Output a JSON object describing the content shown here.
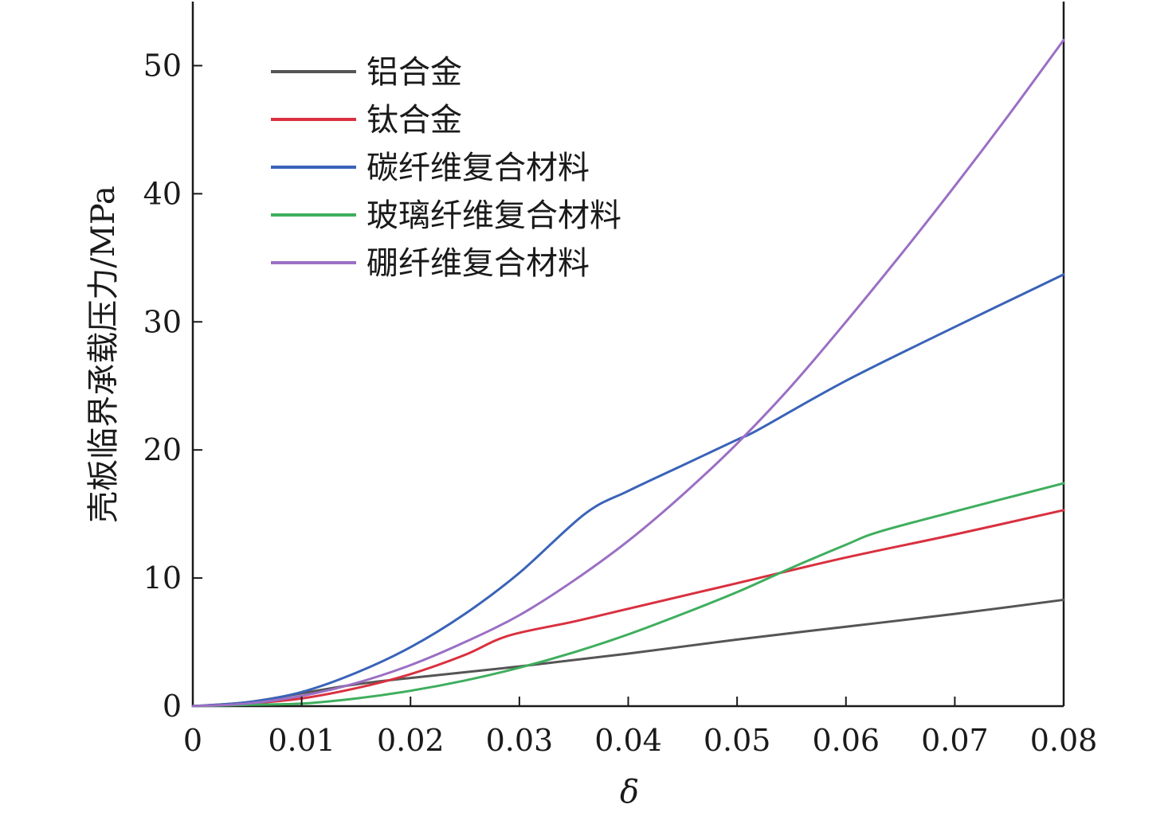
{
  "chart_data": {
    "type": "line",
    "xlabel": "δ",
    "ylabel": "壳板临界承载压力/MPa",
    "xlim": [
      0,
      0.08
    ],
    "ylim": [
      0,
      55
    ],
    "xticks": [
      0,
      0.01,
      0.02,
      0.03,
      0.04,
      0.05,
      0.06,
      0.07,
      0.08
    ],
    "xtick_labels": [
      "0",
      "0.01",
      "0.02",
      "0.03",
      "0.04",
      "0.05",
      "0.06",
      "0.07",
      "0.08"
    ],
    "yticks": [
      0,
      10,
      20,
      30,
      40,
      50
    ],
    "ytick_labels": [
      "0",
      "10",
      "20",
      "30",
      "40",
      "50"
    ],
    "grid": false,
    "legend_position": "top-left",
    "series": [
      {
        "name": "铝合金",
        "color": "#555555",
        "x": [
          0,
          0.005,
          0.01,
          0.015,
          0.02,
          0.03,
          0.04,
          0.05,
          0.06,
          0.07,
          0.08
        ],
        "y": [
          0,
          0.3,
          1.0,
          1.7,
          2.2,
          3.1,
          4.1,
          5.2,
          6.2,
          7.2,
          8.3
        ]
      },
      {
        "name": "钛合金",
        "color": "#d9303f",
        "x": [
          0,
          0.005,
          0.01,
          0.015,
          0.02,
          0.025,
          0.029,
          0.035,
          0.04,
          0.05,
          0.06,
          0.07,
          0.08
        ],
        "y": [
          0,
          0.2,
          0.6,
          1.4,
          2.5,
          4.0,
          5.5,
          6.6,
          7.6,
          9.6,
          11.6,
          13.4,
          15.3
        ]
      },
      {
        "name": "碳纤维复合材料",
        "color": "#3a63b8",
        "x": [
          0,
          0.005,
          0.01,
          0.015,
          0.02,
          0.025,
          0.03,
          0.036,
          0.04,
          0.045,
          0.05,
          0.052,
          0.06,
          0.07,
          0.08
        ],
        "y": [
          0,
          0.3,
          1.1,
          2.6,
          4.6,
          7.2,
          10.4,
          15.0,
          16.8,
          18.8,
          20.8,
          21.6,
          25.4,
          29.6,
          33.7
        ]
      },
      {
        "name": "玻璃纤维复合材料",
        "color": "#3fae5e",
        "x": [
          0,
          0.005,
          0.01,
          0.015,
          0.02,
          0.025,
          0.03,
          0.035,
          0.04,
          0.045,
          0.05,
          0.055,
          0.06,
          0.063,
          0.07,
          0.08
        ],
        "y": [
          0,
          0.1,
          0.2,
          0.6,
          1.2,
          2.0,
          3.0,
          4.2,
          5.6,
          7.2,
          8.9,
          10.8,
          12.6,
          13.6,
          15.2,
          17.4
        ]
      },
      {
        "name": "硼纤维复合材料",
        "color": "#9b6fc4",
        "x": [
          0,
          0.005,
          0.01,
          0.015,
          0.02,
          0.025,
          0.03,
          0.035,
          0.04,
          0.045,
          0.05,
          0.055,
          0.06,
          0.065,
          0.07,
          0.075,
          0.08
        ],
        "y": [
          0,
          0.2,
          0.8,
          1.8,
          3.2,
          5.0,
          7.1,
          9.8,
          12.9,
          16.5,
          20.5,
          25.0,
          30.0,
          35.2,
          40.6,
          46.2,
          52.0
        ]
      }
    ]
  }
}
